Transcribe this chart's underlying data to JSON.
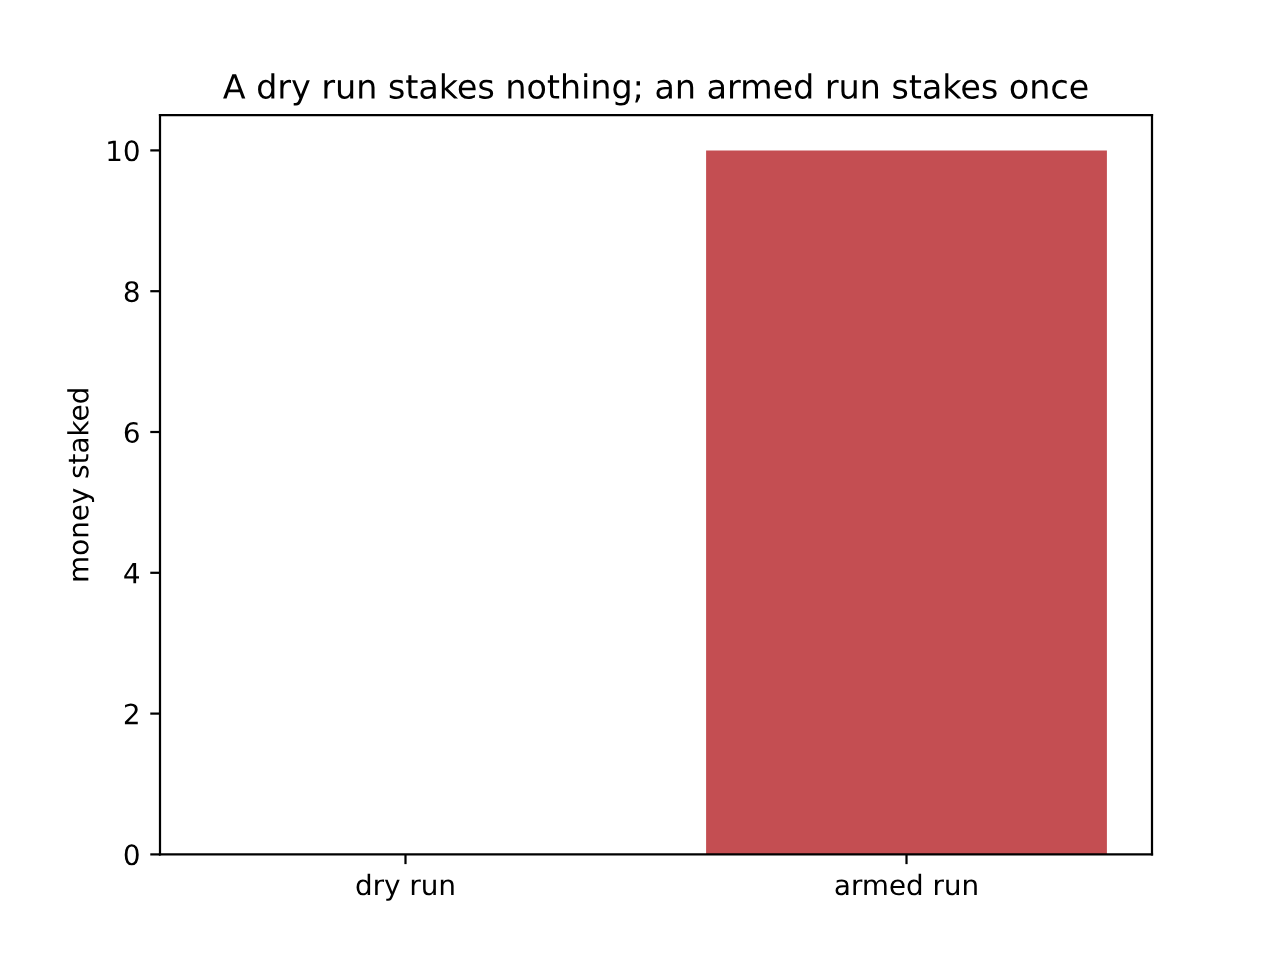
{
  "chart_data": {
    "type": "bar",
    "title": "A dry run stakes nothing; an armed run stakes once",
    "ylabel": "money staked",
    "categories": [
      "dry run",
      "armed run"
    ],
    "values": [
      0,
      10
    ],
    "color": "#c44e52",
    "ylim": [
      0,
      10.5
    ],
    "yticks": [
      0,
      2,
      4,
      6,
      8,
      10
    ],
    "grid": false,
    "legend": false
  }
}
